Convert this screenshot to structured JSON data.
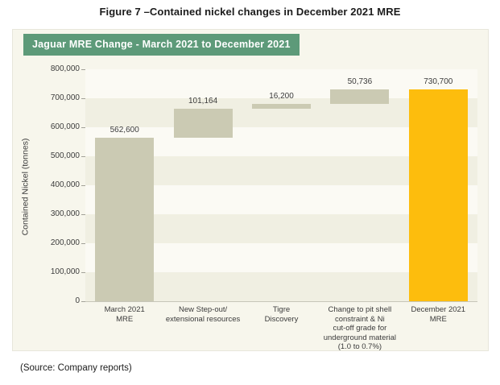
{
  "page": {
    "title": "Figure 7 –Contained nickel changes in December 2021 MRE",
    "source": "(Source: Company reports)"
  },
  "colors": {
    "banner_bg": "#5D9A79",
    "banner_text": "#FFFFFF",
    "panel_bg": "#F7F6EC",
    "band_light": "#FBFAF4",
    "band_dark": "#F0EFE2",
    "bar_gray": "#CBCAB3",
    "bar_yellow": "#FDBD0D",
    "axis_text": "#3B3B3B"
  },
  "chart_data": {
    "type": "bar",
    "subtype": "waterfall",
    "title": "Jaguar MRE Change - March 2021 to December 2021",
    "ylabel": "Contained Nickel (tonnes)",
    "xlabel": "",
    "ylim": [
      0,
      800000
    ],
    "ytick_interval": 100000,
    "ytick_labels": [
      "800,000",
      "700,000",
      "600,000",
      "500,000",
      "400,000",
      "300,000",
      "200,000",
      "100,000",
      "0"
    ],
    "grid": "striped-bands",
    "legend": "none",
    "bars": [
      {
        "category_lines": [
          "March 2021",
          "MRE"
        ],
        "value": 562600,
        "value_label": "562,600",
        "kind": "total",
        "color": "#CBCAB3"
      },
      {
        "category_lines": [
          "New Step-out/",
          "extensional resources"
        ],
        "value": 101164,
        "value_label": "101,164",
        "kind": "delta",
        "color": "#CBCAB3"
      },
      {
        "category_lines": [
          "Tigre",
          "Discovery"
        ],
        "value": 16200,
        "value_label": "16,200",
        "kind": "delta",
        "color": "#CBCAB3"
      },
      {
        "category_lines": [
          "Change to pit shell",
          "constraint & Ni",
          "cut-off grade for",
          "underground material",
          "(1.0 to 0.7%)"
        ],
        "value": 50736,
        "value_label": "50,736",
        "kind": "delta",
        "color": "#CBCAB3"
      },
      {
        "category_lines": [
          "December 2021",
          "MRE"
        ],
        "value": 730700,
        "value_label": "730,700",
        "kind": "total",
        "color": "#FDBD0D"
      }
    ]
  }
}
